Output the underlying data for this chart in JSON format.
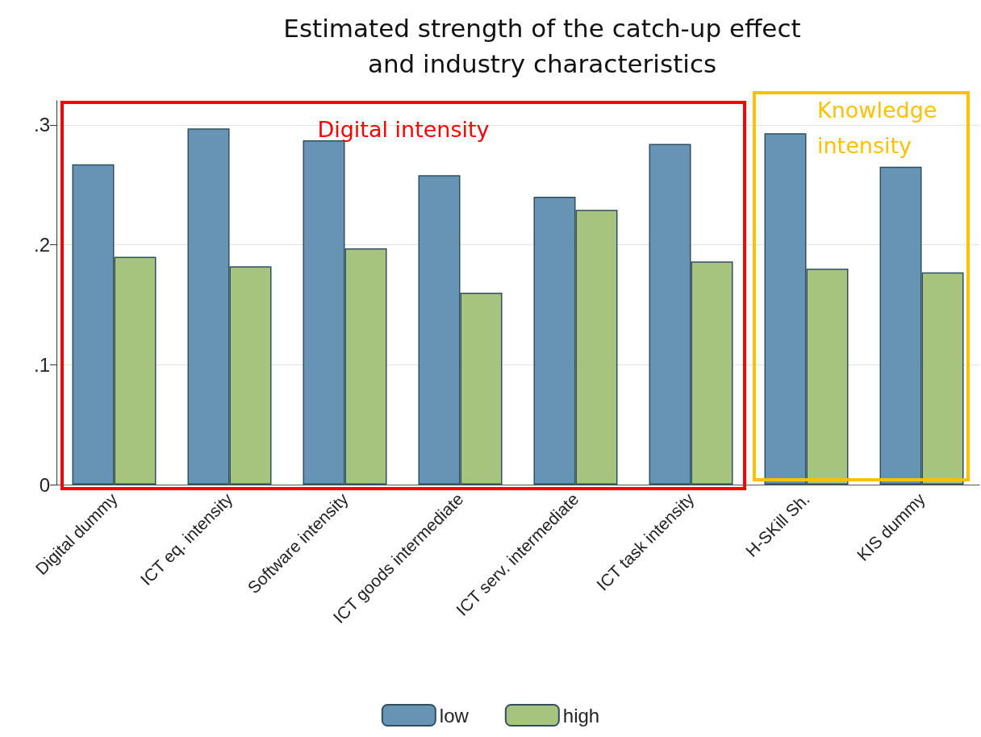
{
  "chart_data": {
    "type": "bar",
    "title": "Estimated strength of the catch-up effect\nand industry characteristics",
    "categories": [
      "Digital dummy",
      "ICT eq. intensity",
      "Software intensity",
      "ICT goods intermediate",
      "ICT serv. intermediate",
      "ICT task intensity",
      "H-SKill Sh.",
      "KIS dummy"
    ],
    "series": [
      {
        "name": "low",
        "color": "#6794b4",
        "values": [
          0.267,
          0.297,
          0.287,
          0.258,
          0.24,
          0.284,
          0.293,
          0.265
        ]
      },
      {
        "name": "high",
        "color": "#a7c47f",
        "values": [
          0.19,
          0.182,
          0.197,
          0.16,
          0.229,
          0.186,
          0.18,
          0.177
        ]
      }
    ],
    "ylim": [
      0,
      0.32
    ],
    "yticks": [
      {
        "value": 0,
        "label": "0"
      },
      {
        "value": 0.1,
        "label": ".1"
      },
      {
        "value": 0.2,
        "label": ".2"
      },
      {
        "value": 0.3,
        "label": ".3"
      }
    ],
    "grid": "y",
    "legend": "bottom",
    "annotations": [
      "Digital intensity",
      "Knowledge intensity"
    ]
  }
}
